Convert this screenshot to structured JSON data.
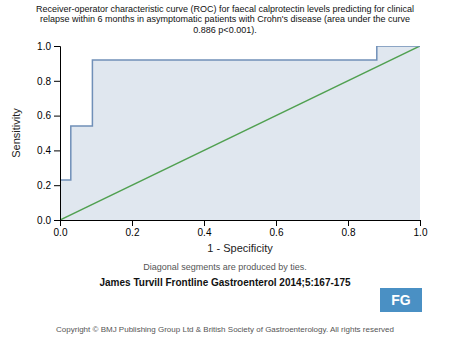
{
  "chart_data": {
    "type": "line",
    "title": "Receiver-operator characteristic curve (ROC) for faecal calprotectin levels predicting for clinical\nrelapse within 6 months in asymptomatic patients with Crohn's disease (area under the curve\n0.886 p<0.001).",
    "x_label": "1 - Specificity",
    "y_label": "Sensitivity",
    "series": [
      {
        "type": "area",
        "color": "#7090b8",
        "x": [
          0.0,
          0.0,
          0.0,
          0.03,
          0.03,
          0.09,
          0.09,
          0.88,
          0.88,
          1.0
        ],
        "values": [
          0.0,
          0.15,
          0.23,
          0.23,
          0.54,
          0.54,
          0.92,
          0.92,
          1.0,
          1.0
        ]
      },
      {
        "type": "line",
        "color": "#50a050",
        "x": [
          0.0,
          1.0
        ],
        "values": [
          0.0,
          1.0
        ]
      }
    ],
    "xlim": [
      0.0,
      1.0
    ],
    "ylim": [
      0.0,
      1.0
    ],
    "xticks": [
      {
        "value": 0.0,
        "label": "0.0"
      },
      0.2,
      0.4,
      0.6,
      0.8,
      {
        "value": 1.0,
        "label": "1.0"
      }
    ],
    "yticks": [
      {
        "value": 0.0,
        "label": "0.0"
      },
      0.2,
      0.4,
      0.6,
      0.8,
      {
        "value": 1.0,
        "label": "1.0"
      }
    ],
    "grid": false,
    "annotations": [
      "Diagonal segments are produced by ties.",
      "James Turvill Frontline Gastroenterol 2014;5:167-175",
      "Copyright © BMJ Publishing Group Ltd & British Society of Gastroenterology.  All rights reserved",
      "FG"
    ]
  }
}
